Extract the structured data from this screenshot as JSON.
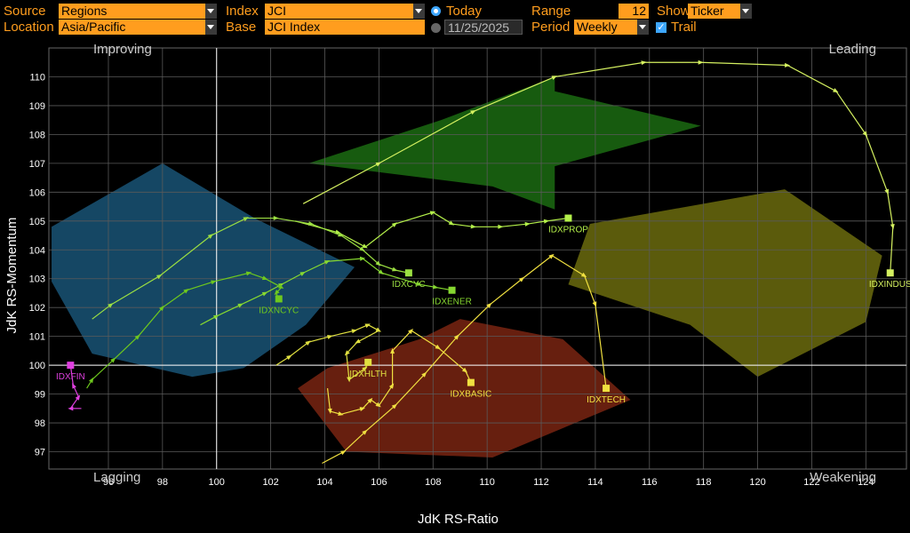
{
  "controls": {
    "source_label": "Source",
    "source_value": "Regions",
    "location_label": "Location",
    "location_value": "Asia/Pacific",
    "index_label": "Index",
    "index_value": "JCI",
    "base_label": "Base",
    "base_value": "JCI Index",
    "today_label": "Today",
    "date_value": "11/25/2025",
    "range_label": "Range",
    "range_value": "12",
    "period_label": "Period",
    "period_value": "Weekly",
    "show_label": "Show",
    "show_value": "Ticker",
    "trail_label": "Trail"
  },
  "chart_data": {
    "type": "scatter",
    "xlabel": "JdK RS-Ratio",
    "ylabel": "JdK RS-Momentum",
    "xlim": [
      93.8,
      125.5
    ],
    "ylim": [
      96.4,
      111.0
    ],
    "xticks": [
      "96",
      "98",
      "100",
      "102",
      "104",
      "106",
      "108",
      "110",
      "112",
      "114",
      "116",
      "118",
      "120",
      "122",
      "124"
    ],
    "yticks": [
      "97",
      "98",
      "99",
      "100",
      "101",
      "102",
      "103",
      "104",
      "105",
      "106",
      "107",
      "108",
      "109",
      "110"
    ],
    "quadrants": {
      "top_left": "Improving",
      "top_right": "Leading",
      "bottom_left": "Lagging",
      "bottom_right": "Weakening"
    },
    "colors": {
      "improving": "#1c5f86",
      "leading": "#1f7a14",
      "lagging": "#8a2a14",
      "weakening": "#7a7a10",
      "grid": "#5a5a5a",
      "axis": "#ffffff",
      "tick_label": "#ffffff",
      "quadrant_label": "#cccccc"
    },
    "series": [
      {
        "name": "IDXINDUS",
        "color": "#d4f060",
        "points": [
          [
            103.2,
            105.6
          ],
          [
            106.0,
            107.0
          ],
          [
            109.5,
            108.8
          ],
          [
            112.5,
            110.0
          ],
          [
            115.8,
            110.5
          ],
          [
            117.9,
            110.5
          ],
          [
            121.1,
            110.4
          ],
          [
            122.9,
            109.5
          ],
          [
            124.0,
            108.0
          ],
          [
            124.8,
            106.0
          ],
          [
            125.0,
            104.8
          ],
          [
            124.9,
            103.2
          ]
        ]
      },
      {
        "name": "IDXPROP",
        "color": "#b4f04a",
        "points": [
          [
            102.9,
            105.0
          ],
          [
            104.5,
            104.6
          ],
          [
            105.5,
            104.1
          ],
          [
            106.6,
            104.9
          ],
          [
            108.0,
            105.3
          ],
          [
            108.7,
            104.9
          ],
          [
            109.5,
            104.8
          ],
          [
            110.5,
            104.8
          ],
          [
            111.5,
            104.9
          ],
          [
            112.2,
            105.0
          ],
          [
            113.0,
            105.1
          ]
        ]
      },
      {
        "name": "IDXCYC",
        "color": "#9ce042",
        "points": [
          [
            95.4,
            101.6
          ],
          [
            96.1,
            102.1
          ],
          [
            97.9,
            103.1
          ],
          [
            99.8,
            104.5
          ],
          [
            101.1,
            105.1
          ],
          [
            102.2,
            105.1
          ],
          [
            103.5,
            104.9
          ],
          [
            104.6,
            104.5
          ],
          [
            105.4,
            104.0
          ],
          [
            106.0,
            103.5
          ],
          [
            106.6,
            103.3
          ],
          [
            107.1,
            103.2
          ]
        ]
      },
      {
        "name": "IDXENER",
        "color": "#86d830",
        "points": [
          [
            99.4,
            101.4
          ],
          [
            100.0,
            101.7
          ],
          [
            100.9,
            102.1
          ],
          [
            101.8,
            102.5
          ],
          [
            102.4,
            102.8
          ],
          [
            103.2,
            103.2
          ],
          [
            104.1,
            103.6
          ],
          [
            105.4,
            103.7
          ],
          [
            106.1,
            103.2
          ],
          [
            107.5,
            102.8
          ],
          [
            108.1,
            102.7
          ],
          [
            108.7,
            102.6
          ]
        ]
      },
      {
        "name": "IDXNCYC",
        "color": "#6ec81e",
        "points": [
          [
            95.2,
            99.2
          ],
          [
            95.4,
            99.5
          ],
          [
            96.2,
            100.2
          ],
          [
            97.1,
            101.0
          ],
          [
            98.0,
            102.0
          ],
          [
            98.9,
            102.6
          ],
          [
            99.9,
            102.9
          ],
          [
            101.2,
            103.2
          ],
          [
            101.8,
            103.0
          ],
          [
            102.4,
            102.7
          ],
          [
            102.2,
            102.5
          ],
          [
            102.3,
            102.3
          ]
        ]
      },
      {
        "name": "IDXFIN",
        "color": "#e040e0",
        "points": [
          [
            95.0,
            98.5
          ],
          [
            94.6,
            98.5
          ],
          [
            94.9,
            98.9
          ],
          [
            94.7,
            99.3
          ],
          [
            94.6,
            100.0
          ]
        ]
      },
      {
        "name": "IDXHLTH",
        "color": "#e0e040",
        "points": [
          [
            102.2,
            100.0
          ],
          [
            102.7,
            100.3
          ],
          [
            103.4,
            100.8
          ],
          [
            104.2,
            101.0
          ],
          [
            105.1,
            101.2
          ],
          [
            105.6,
            101.4
          ],
          [
            106.0,
            101.2
          ],
          [
            105.2,
            100.8
          ],
          [
            104.8,
            100.4
          ],
          [
            104.9,
            99.5
          ],
          [
            105.5,
            99.9
          ],
          [
            105.6,
            100.1
          ]
        ]
      },
      {
        "name": "IDXBASIC",
        "color": "#f0e040",
        "points": [
          [
            104.1,
            99.2
          ],
          [
            104.2,
            98.4
          ],
          [
            104.6,
            98.3
          ],
          [
            105.4,
            98.5
          ],
          [
            105.7,
            98.8
          ],
          [
            106.0,
            98.6
          ],
          [
            106.5,
            99.3
          ],
          [
            106.5,
            100.5
          ],
          [
            107.2,
            101.2
          ],
          [
            108.2,
            100.6
          ],
          [
            109.2,
            99.8
          ],
          [
            109.4,
            99.4
          ]
        ]
      },
      {
        "name": "IDXTECH",
        "color": "#f0e040",
        "points": [
          [
            103.9,
            96.6
          ],
          [
            104.7,
            97.0
          ],
          [
            105.5,
            97.7
          ],
          [
            106.6,
            98.6
          ],
          [
            107.7,
            99.7
          ],
          [
            108.9,
            101.0
          ],
          [
            110.1,
            102.1
          ],
          [
            111.3,
            103.0
          ],
          [
            112.4,
            103.8
          ],
          [
            113.6,
            103.1
          ],
          [
            114.0,
            102.1
          ],
          [
            114.4,
            99.2
          ]
        ]
      }
    ],
    "grid": true,
    "reference_lines": {
      "x": 100,
      "y": 100
    }
  }
}
